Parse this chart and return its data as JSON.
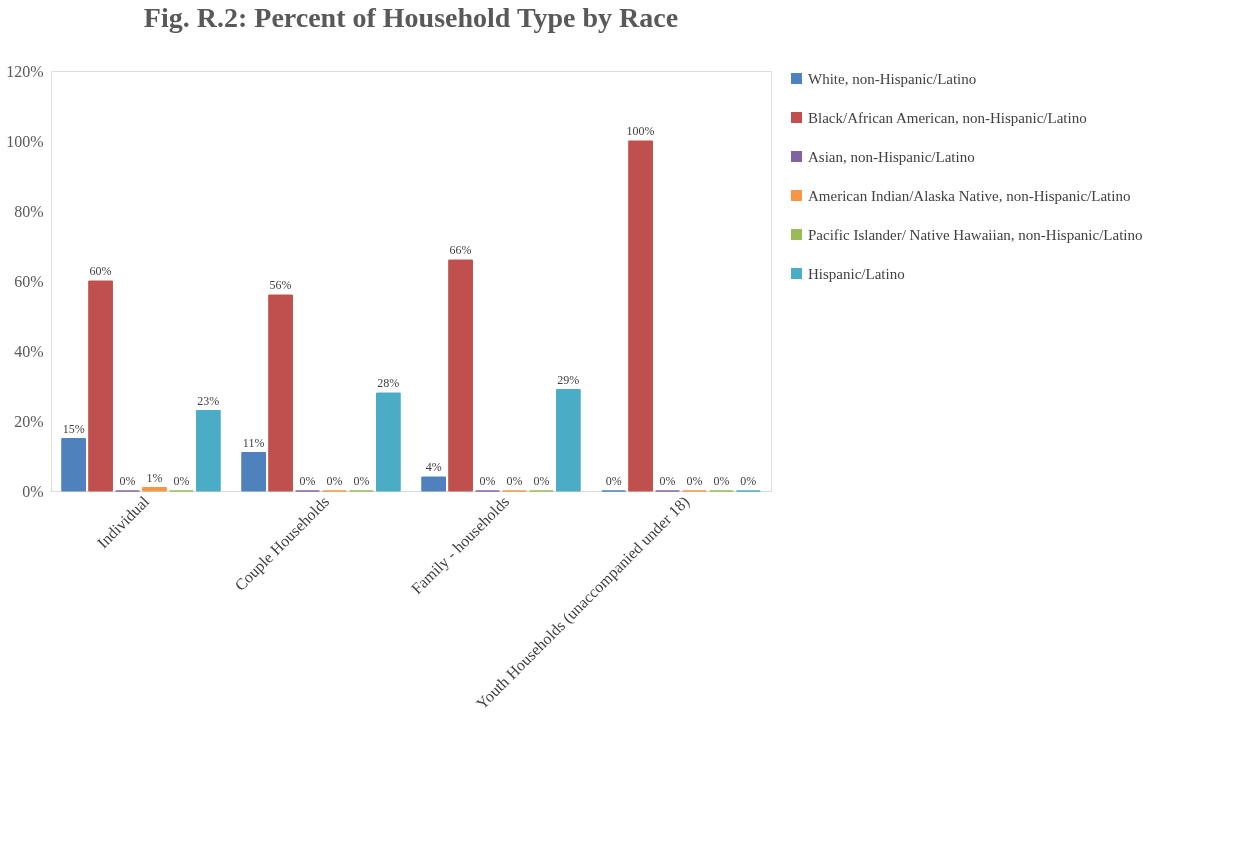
{
  "chart_data": {
    "type": "bar",
    "title": "Fig. R.2: Percent of Household Type by Race",
    "categories": [
      "Individual",
      "Couple Households",
      "Family - households",
      "Youth Households (unaccompanied under 18)"
    ],
    "series": [
      {
        "name": "White, non-Hispanic/Latino",
        "color": "#4f81bd",
        "values": [
          15,
          11,
          4,
          0
        ],
        "value_labels": [
          "15%",
          "11%",
          "4%",
          "0%"
        ]
      },
      {
        "name": "Black/African American, non-Hispanic/Latino",
        "color": "#c0504d",
        "values": [
          60,
          56,
          66,
          100
        ],
        "value_labels": [
          "60%",
          "56%",
          "66%",
          "100%"
        ]
      },
      {
        "name": "Asian, non-Hispanic/Latino",
        "color": "#8064a2",
        "values": [
          0,
          0,
          0,
          0
        ],
        "value_labels": [
          "0%",
          "0%",
          "0%",
          "0%"
        ]
      },
      {
        "name": "American Indian/Alaska Native, non-Hispanic/Latino",
        "color": "#f79646",
        "values": [
          1,
          0,
          0,
          0
        ],
        "value_labels": [
          "1%",
          "0%",
          "0%",
          "0%"
        ]
      },
      {
        "name": "Pacific Islander/ Native Hawaiian, non-Hispanic/Latino",
        "color": "#9bbb59",
        "values": [
          0,
          0,
          0,
          0
        ],
        "value_labels": [
          "0%",
          "0%",
          "0%",
          "0%"
        ]
      },
      {
        "name": "Hispanic/Latino",
        "color": "#4bacc6",
        "values": [
          23,
          28,
          29,
          0
        ],
        "value_labels": [
          "23%",
          "28%",
          "29%",
          "0%"
        ]
      }
    ],
    "ylim": [
      0,
      120
    ],
    "yticks": [
      {
        "value": 0,
        "label": "0%"
      },
      {
        "value": 20,
        "label": "20%"
      },
      {
        "value": 40,
        "label": "40%"
      },
      {
        "value": 60,
        "label": "60%"
      },
      {
        "value": 80,
        "label": "80%"
      },
      {
        "value": 100,
        "label": "100%"
      },
      {
        "value": 120,
        "label": "120%"
      }
    ],
    "grid": false,
    "legend": "right"
  }
}
